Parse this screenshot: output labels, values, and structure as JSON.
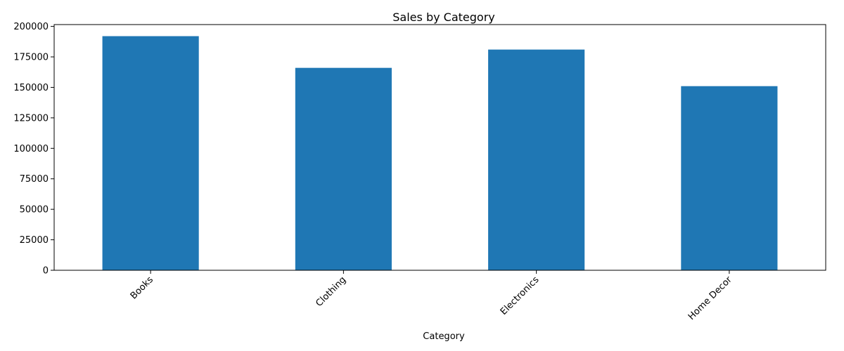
{
  "chart_data": {
    "type": "bar",
    "title": "Sales by Category",
    "xlabel": "Category",
    "ylabel": "",
    "categories": [
      "Books",
      "Clothing",
      "Electronics",
      "Home Decor"
    ],
    "values": [
      192000,
      166000,
      181000,
      151000
    ],
    "ylim": [
      0,
      201500
    ],
    "yticks": [
      0,
      25000,
      50000,
      75000,
      100000,
      125000,
      150000,
      175000,
      200000
    ],
    "bar_color": "#1f77b4",
    "grid": false,
    "legend": "none",
    "x_tick_rotation_deg": 45
  }
}
